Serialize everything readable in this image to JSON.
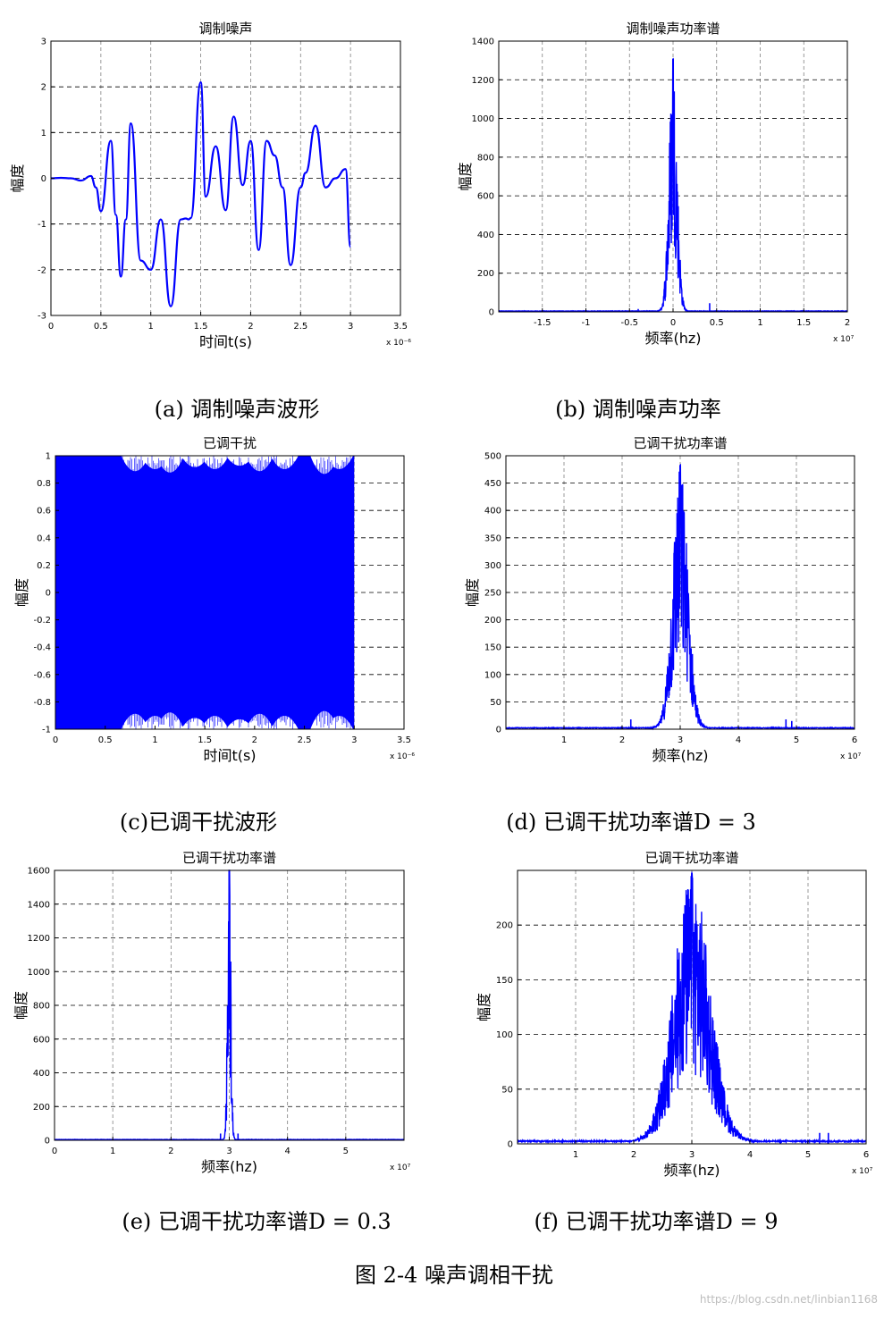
{
  "figure_caption": "图 2-4  噪声调相干扰",
  "watermark": "https://blog.csdn.net/linbian1168",
  "colors": {
    "trace": "#0000ff",
    "axis": "#000000",
    "grid": "#808080",
    "background": "#ffffff"
  },
  "chart_data": [
    {
      "id": "a",
      "type": "line",
      "title": "调制噪声",
      "xlabel": "时间t(s)",
      "ylabel": "幅度",
      "x_multiplier": "x 10⁻⁶",
      "xlim": [
        0,
        3.5
      ],
      "ylim": [
        -3,
        3
      ],
      "xticks": [
        0,
        0.5,
        1,
        1.5,
        2,
        2.5,
        3,
        3.5
      ],
      "xticklabels": [
        "0",
        "0.5",
        "1",
        "1.5",
        "2",
        "2.5",
        "3",
        "3.5"
      ],
      "yticks": [
        -3,
        -2,
        -1,
        0,
        1,
        2,
        3
      ],
      "yticklabels": [
        "-3",
        "-2",
        "-1",
        "0",
        "1",
        "2",
        "3"
      ],
      "grid": true,
      "caption": "(a)  调制噪声波形",
      "series": [
        {
          "x": [
            0,
            0.1,
            0.2,
            0.3,
            0.4,
            0.45,
            0.5,
            0.6,
            0.65,
            0.7,
            0.75,
            0.8,
            0.9,
            1.0,
            1.1,
            1.2,
            1.3,
            1.35,
            1.38,
            1.4,
            1.5,
            1.55,
            1.65,
            1.75,
            1.83,
            1.92,
            2.0,
            2.08,
            2.16,
            2.24,
            2.32,
            2.4,
            2.5,
            2.55,
            2.65,
            2.75,
            2.85,
            2.95,
            3.0
          ],
          "y": [
            0,
            0.01,
            0.0,
            -0.05,
            0.05,
            -0.2,
            -0.72,
            0.82,
            -0.8,
            -2.15,
            -0.9,
            1.2,
            -1.8,
            -2.0,
            -0.9,
            -2.8,
            -0.9,
            -0.88,
            -0.9,
            -0.87,
            2.1,
            -0.4,
            0.7,
            -0.7,
            1.35,
            -0.15,
            0.82,
            -1.57,
            0.82,
            0.5,
            -0.2,
            -1.9,
            -0.2,
            0.12,
            1.15,
            -0.2,
            0.0,
            0.2,
            -1.5
          ]
        }
      ]
    },
    {
      "id": "b",
      "type": "line",
      "title": "调制噪声功率谱",
      "xlabel": "频率(hz)",
      "ylabel": "幅度",
      "x_multiplier": "x 10⁷",
      "xlim": [
        -2,
        2
      ],
      "ylim": [
        0,
        1400
      ],
      "xticks": [
        -1.5,
        -1,
        -0.5,
        0,
        0.5,
        1,
        1.5,
        2
      ],
      "xticklabels": [
        "-1.5",
        "-1",
        "-0.5",
        "0",
        "0.5",
        "1",
        "1.5",
        "2"
      ],
      "yticks": [
        0,
        200,
        400,
        600,
        800,
        1000,
        1200,
        1400
      ],
      "yticklabels": [
        "0",
        "200",
        "400",
        "600",
        "800",
        "1000",
        "1200",
        "1400"
      ],
      "grid": true,
      "caption": "(b)  调制噪声功率",
      "series": [
        {
          "center": 0.0,
          "width": 0.1,
          "peak": 1300,
          "noise_floor": 5,
          "spikes": [
            {
              "x": 0.42,
              "y": 45
            },
            {
              "x": -0.4,
              "y": 15
            }
          ]
        }
      ]
    },
    {
      "id": "c",
      "type": "area",
      "title": "已调干扰",
      "xlabel": "时间t(s)",
      "ylabel": "幅度",
      "x_multiplier": "x 10⁻⁶",
      "xlim": [
        0,
        3.5
      ],
      "ylim": [
        -1,
        1
      ],
      "xticks": [
        0,
        0.5,
        1,
        1.5,
        2,
        2.5,
        3,
        3.5
      ],
      "xticklabels": [
        "0",
        "0.5",
        "1",
        "1.5",
        "2",
        "2.5",
        "3",
        "3.5"
      ],
      "yticks": [
        -1,
        -0.8,
        -0.6,
        -0.4,
        -0.2,
        0,
        0.2,
        0.4,
        0.6,
        0.8,
        1
      ],
      "yticklabels": [
        "-1",
        "-0.8",
        "-0.6",
        "-0.4",
        "-0.2",
        "0",
        "0.2",
        "0.4",
        "0.6",
        "0.8",
        "1"
      ],
      "grid": true,
      "caption": "(c)已调干扰波形",
      "series": [
        {
          "x_range": [
            0,
            3.0
          ],
          "amplitude": 1,
          "envelope_dips_x": [
            0.8,
            1.0,
            1.15,
            1.4,
            1.6,
            1.85,
            2.05,
            2.3,
            2.7,
            2.85
          ],
          "envelope_dips_min": [
            0.82,
            0.85,
            0.8,
            0.88,
            0.85,
            0.9,
            0.82,
            0.85,
            0.78,
            0.85
          ]
        }
      ]
    },
    {
      "id": "d",
      "type": "line",
      "title": "已调干扰功率谱",
      "xlabel": "频率(hz)",
      "ylabel": "幅度",
      "x_multiplier": "x 10⁷",
      "xlim": [
        0,
        6
      ],
      "ylim": [
        0,
        500
      ],
      "xticks": [
        1,
        2,
        3,
        4,
        5,
        6
      ],
      "xticklabels": [
        "1",
        "2",
        "3",
        "4",
        "5",
        "6"
      ],
      "yticks": [
        0,
        50,
        100,
        150,
        200,
        250,
        300,
        350,
        400,
        450,
        500
      ],
      "yticklabels": [
        "0",
        "50",
        "100",
        "150",
        "200",
        "250",
        "300",
        "350",
        "400",
        "450",
        "500"
      ],
      "grid": true,
      "caption": "(d)  已调干扰功率谱D = 3",
      "series": [
        {
          "center": 3.0,
          "width": 0.28,
          "peak": 480,
          "noise_floor": 3,
          "spikes": [
            {
              "x": 2.15,
              "y": 18
            },
            {
              "x": 4.82,
              "y": 18
            },
            {
              "x": 4.92,
              "y": 15
            }
          ]
        }
      ]
    },
    {
      "id": "e",
      "type": "line",
      "title": "已调干扰功率谱",
      "xlabel": "频率(hz)",
      "ylabel": "幅度",
      "x_multiplier": "x 10⁷",
      "xlim": [
        0,
        6
      ],
      "ylim": [
        0,
        1600
      ],
      "xticks": [
        0,
        1,
        2,
        3,
        4,
        5
      ],
      "xticklabels": [
        "0",
        "1",
        "2",
        "3",
        "4",
        "5"
      ],
      "yticks": [
        0,
        200,
        400,
        600,
        800,
        1000,
        1200,
        1400,
        1600
      ],
      "yticklabels": [
        "0",
        "200",
        "400",
        "600",
        "800",
        "1000",
        "1200",
        "1400",
        "1600"
      ],
      "grid": true,
      "caption": "(e)  已调干扰功率谱D = 0.3",
      "series": [
        {
          "center": 3.0,
          "width": 0.06,
          "peak": 1630,
          "noise_floor": 5,
          "spikes": [
            {
              "x": 2.85,
              "y": 40
            },
            {
              "x": 3.15,
              "y": 40
            }
          ]
        }
      ]
    },
    {
      "id": "f",
      "type": "line",
      "title": "已调干扰功率谱",
      "xlabel": "频率(hz)",
      "ylabel": "幅度",
      "x_multiplier": "x 10⁷",
      "xlim": [
        0,
        6
      ],
      "ylim": [
        0,
        250
      ],
      "xticks": [
        1,
        2,
        3,
        4,
        5,
        6
      ],
      "xticklabels": [
        "1",
        "2",
        "3",
        "4",
        "5",
        "6"
      ],
      "yticks": [
        0,
        50,
        100,
        150,
        200
      ],
      "yticklabels": [
        "0",
        "50",
        "100",
        "150",
        "200"
      ],
      "grid": true,
      "caption": "(f)  已调干扰功率谱D = 9",
      "series": [
        {
          "center": 3.0,
          "width": 0.65,
          "peak": 245,
          "noise_floor": 3,
          "spikes": [
            {
              "x": 5.2,
              "y": 10
            },
            {
              "x": 5.35,
              "y": 10
            }
          ]
        }
      ]
    }
  ]
}
